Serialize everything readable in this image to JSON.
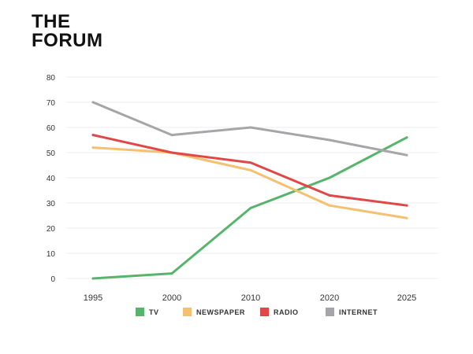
{
  "logo": {
    "line1": "THE",
    "line2": "FORUM"
  },
  "chart_data": {
    "type": "line",
    "x": [
      1995,
      2000,
      2010,
      2020,
      2025
    ],
    "x_tick_labels": [
      "1995",
      "2000",
      "2010",
      "2020",
      "2025"
    ],
    "ylim": [
      0,
      80
    ],
    "y_ticks": [
      0,
      10,
      20,
      30,
      40,
      50,
      60,
      70,
      80
    ],
    "grid": true,
    "legend_position": "bottom",
    "series": [
      {
        "name": "TV",
        "color": "#56b46b",
        "values": [
          0,
          2,
          28,
          40,
          56
        ]
      },
      {
        "name": "NEWSPAPER",
        "color": "#f3c170",
        "values": [
          52,
          50,
          43,
          29,
          24
        ]
      },
      {
        "name": "RADIO",
        "color": "#e04848",
        "values": [
          57,
          50,
          46,
          33,
          29
        ]
      },
      {
        "name": "INTERNET",
        "color": "#a6a6aa",
        "values": [
          70,
          57,
          60,
          55,
          49
        ]
      }
    ]
  }
}
